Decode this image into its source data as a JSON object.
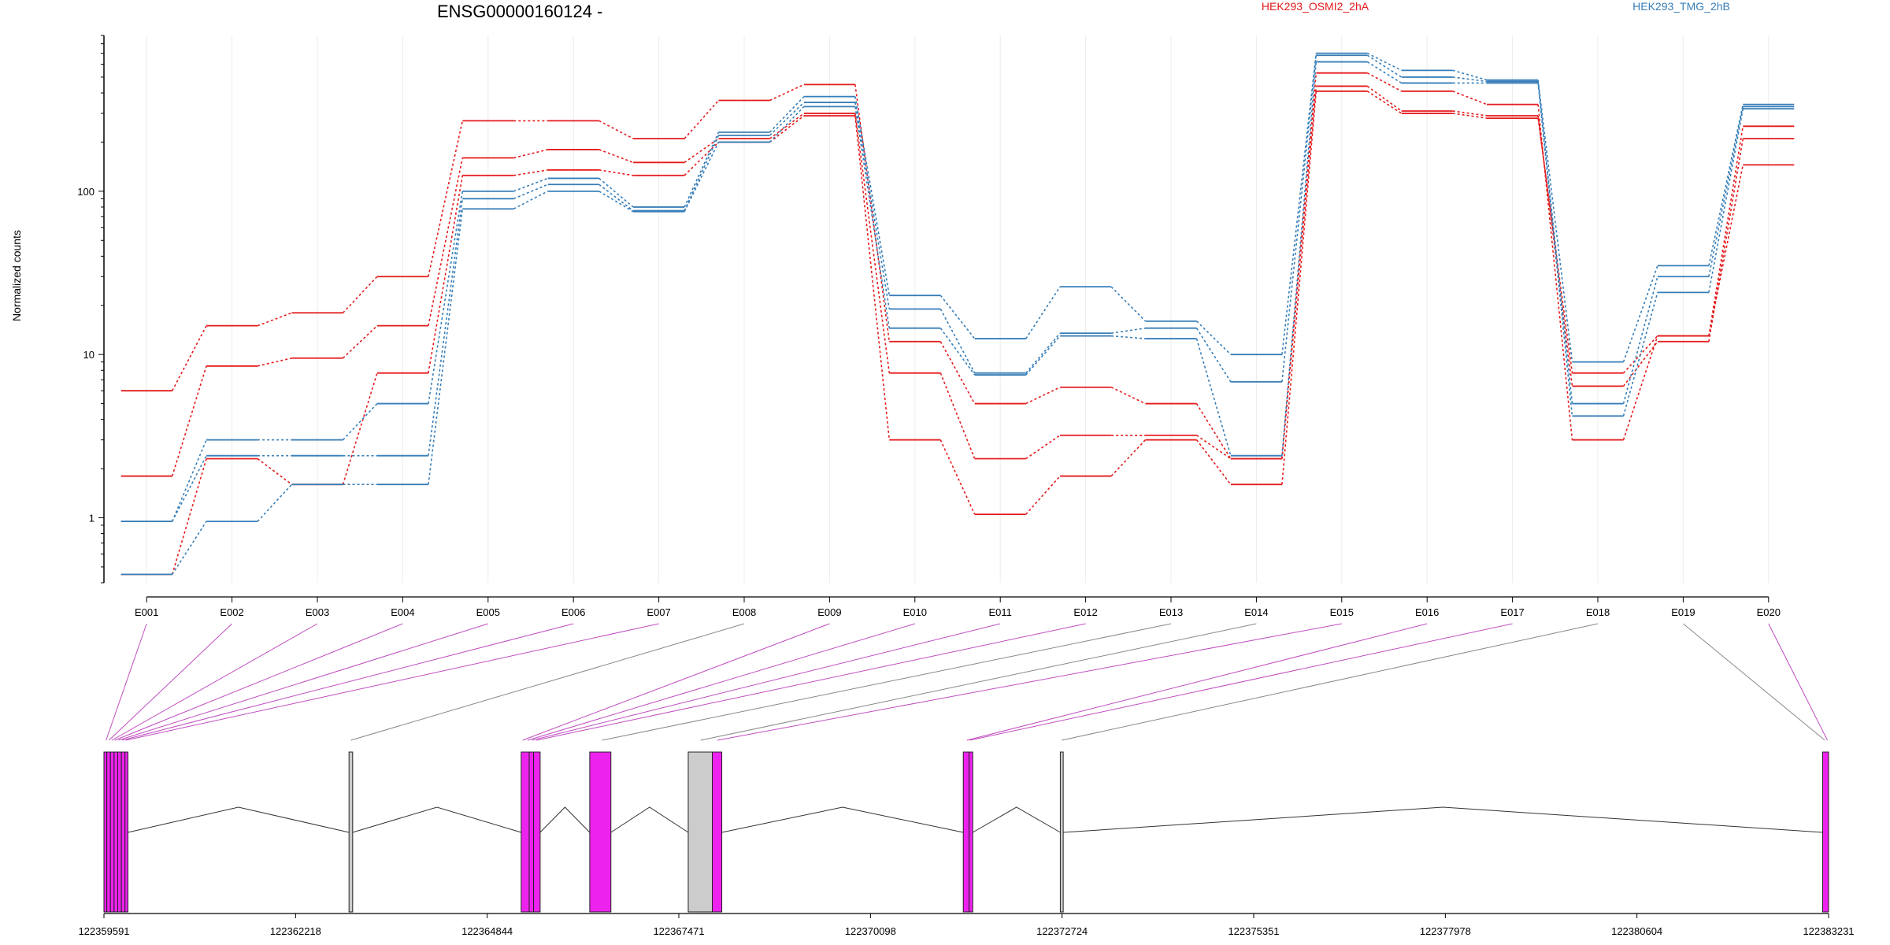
{
  "chart_data": {
    "type": "line",
    "title": "ENSG00000160124 -",
    "ylabel": "Normalized counts",
    "yscale": "log",
    "ylim": [
      0.4,
      900
    ],
    "yticks": [
      1,
      10,
      100
    ],
    "ytick_labels": [
      "1",
      "10",
      "100"
    ],
    "grid": "vertical",
    "legend_position": "top",
    "categories": [
      "E001",
      "E002",
      "E003",
      "E004",
      "E005",
      "E006",
      "E007",
      "E008",
      "E009",
      "E010",
      "E011",
      "E012",
      "E013",
      "E014",
      "E015",
      "E016",
      "E017",
      "E018",
      "E019",
      "E020"
    ],
    "series": [
      {
        "group": "HEK293_OSMI2_2hA",
        "color": "#e41a1c",
        "values": [
          6.0,
          15.0,
          18.0,
          30.0,
          270,
          270,
          210,
          360,
          450,
          12.0,
          5.0,
          6.3,
          5.0,
          2.3,
          530,
          410,
          340,
          3.0,
          13.0,
          250
        ]
      },
      {
        "group": "HEK293_OSMI2_2hA",
        "color": "#e41a1c",
        "values": [
          1.8,
          8.5,
          9.5,
          15.0,
          160,
          180,
          150,
          210,
          300,
          7.7,
          2.3,
          3.2,
          3.2,
          2.3,
          440,
          310,
          290,
          6.4,
          12.0,
          210
        ]
      },
      {
        "group": "HEK293_OSMI2_2hA",
        "color": "#e41a1c",
        "values": [
          0.45,
          2.3,
          1.6,
          7.7,
          125,
          135,
          125,
          200,
          290,
          3.0,
          1.05,
          1.8,
          3.0,
          1.6,
          410,
          300,
          280,
          7.7,
          13.0,
          145
        ]
      },
      {
        "group": "HEK293_TMG_2hB",
        "color": "#377eb8",
        "values": [
          0.95,
          3.0,
          3.0,
          5.0,
          100,
          120,
          80,
          230,
          380,
          23.0,
          12.5,
          26.0,
          16.0,
          10.0,
          700,
          550,
          480,
          9.0,
          35.0,
          340
        ]
      },
      {
        "group": "HEK293_TMG_2hB",
        "color": "#377eb8",
        "values": [
          0.95,
          2.4,
          2.4,
          2.4,
          90,
          110,
          76,
          220,
          350,
          19.0,
          7.7,
          13.5,
          14.5,
          6.8,
          680,
          500,
          470,
          5.0,
          30.0,
          330
        ]
      },
      {
        "group": "HEK293_TMG_2hB",
        "color": "#377eb8",
        "values": [
          0.45,
          0.95,
          1.6,
          1.6,
          78,
          100,
          75,
          200,
          330,
          14.5,
          7.5,
          13.0,
          12.5,
          2.4,
          620,
          460,
          460,
          4.2,
          24.0,
          320
        ]
      }
    ],
    "legend": [
      {
        "label": "HEK293_OSMI2_2hA",
        "color": "#e41a1c"
      },
      {
        "label": "HEK293_TMG_2hB",
        "color": "#377eb8"
      }
    ],
    "gene_track": {
      "coord_range": [
        122359591,
        122383231
      ],
      "tick_values": [
        122359591,
        122362218,
        122364844,
        122367471,
        122370098,
        122372724,
        122375351,
        122377978,
        122380604,
        122383231
      ],
      "tick_labels": [
        "122359591",
        "122362218",
        "122364844",
        "122367471",
        "122370098",
        "122372724",
        "122375351",
        "122377978",
        "122380604",
        "122383231"
      ],
      "exon_color": "#ee22ee",
      "excluded_color": "#cccccc",
      "exons": [
        {
          "start": 122359591,
          "end": 122359630,
          "tested": true
        },
        {
          "start": 122359630,
          "end": 122359680,
          "tested": true
        },
        {
          "start": 122359680,
          "end": 122359730,
          "tested": true
        },
        {
          "start": 122359730,
          "end": 122359780,
          "tested": true
        },
        {
          "start": 122359780,
          "end": 122359830,
          "tested": true
        },
        {
          "start": 122359830,
          "end": 122359880,
          "tested": true
        },
        {
          "start": 122359880,
          "end": 122359920,
          "tested": true
        },
        {
          "start": 122362950,
          "end": 122363000,
          "tested": false
        },
        {
          "start": 122365310,
          "end": 122365420,
          "tested": true
        },
        {
          "start": 122365420,
          "end": 122365480,
          "tested": true
        },
        {
          "start": 122365480,
          "end": 122365570,
          "tested": true
        },
        {
          "start": 122366250,
          "end": 122366540,
          "tested": true
        },
        {
          "start": 122367600,
          "end": 122367930,
          "tested": false
        },
        {
          "start": 122367930,
          "end": 122368060,
          "tested": true
        },
        {
          "start": 122371370,
          "end": 122371450,
          "tested": true
        },
        {
          "start": 122371450,
          "end": 122371500,
          "tested": true
        },
        {
          "start": 122372700,
          "end": 122372740,
          "tested": false
        },
        {
          "start": 122383150,
          "end": 122383231,
          "tested": true
        }
      ],
      "introns": [
        {
          "from": 122359920,
          "to": 122362950,
          "apex": 1
        },
        {
          "from": 122363000,
          "to": 122365310,
          "apex": 1
        },
        {
          "from": 122365570,
          "to": 122366250,
          "apex": 1
        },
        {
          "from": 122366540,
          "to": 122367600,
          "apex": 1
        },
        {
          "from": 122368060,
          "to": 122371370,
          "apex": 1
        },
        {
          "from": 122371500,
          "to": 122372700,
          "apex": 1
        },
        {
          "from": 122372740,
          "to": 122383150,
          "apex": 1
        }
      ],
      "bin_to_coord": [
        {
          "bin": "E001",
          "coord": 122359620,
          "tested": true
        },
        {
          "bin": "E002",
          "coord": 122359660,
          "tested": true
        },
        {
          "bin": "E003",
          "coord": 122359700,
          "tested": true
        },
        {
          "bin": "E004",
          "coord": 122359740,
          "tested": true
        },
        {
          "bin": "E005",
          "coord": 122359790,
          "tested": true
        },
        {
          "bin": "E006",
          "coord": 122359840,
          "tested": true
        },
        {
          "bin": "E007",
          "coord": 122359890,
          "tested": true
        },
        {
          "bin": "E008",
          "coord": 122362975,
          "tested": false
        },
        {
          "bin": "E009",
          "coord": 122365330,
          "tested": true
        },
        {
          "bin": "E010",
          "coord": 122365400,
          "tested": true
        },
        {
          "bin": "E011",
          "coord": 122365460,
          "tested": true
        },
        {
          "bin": "E012",
          "coord": 122365520,
          "tested": true
        },
        {
          "bin": "E013",
          "coord": 122366420,
          "tested": false
        },
        {
          "bin": "E014",
          "coord": 122367770,
          "tested": false
        },
        {
          "bin": "E015",
          "coord": 122368000,
          "tested": true
        },
        {
          "bin": "E016",
          "coord": 122371420,
          "tested": true
        },
        {
          "bin": "E017",
          "coord": 122371460,
          "tested": true
        },
        {
          "bin": "E018",
          "coord": 122372720,
          "tested": false
        },
        {
          "bin": "E019",
          "coord": 122383180,
          "tested": false
        },
        {
          "bin": "E020",
          "coord": 122383215,
          "tested": true
        }
      ]
    }
  }
}
